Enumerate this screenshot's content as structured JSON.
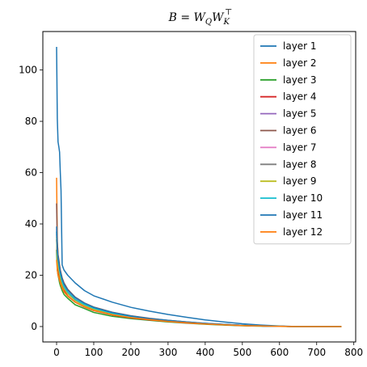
{
  "chart_data": {
    "type": "line",
    "title": "B = W_Q W_K^⊤",
    "title_parts": {
      "b": "B",
      "eq": " = W",
      "q_sub": "Q",
      "w2": "W",
      "k_sub": "K",
      "k_sup": "⊤"
    },
    "xlabel": "",
    "ylabel": "",
    "xlim": [
      -37,
      805
    ],
    "ylim": [
      -6,
      115
    ],
    "xticks": [
      0,
      100,
      200,
      300,
      400,
      500,
      600,
      700,
      800
    ],
    "yticks": [
      0,
      20,
      40,
      60,
      80,
      100
    ],
    "grid": false,
    "legend_position": "top-right",
    "series": [
      {
        "name": "layer 1",
        "color": "#1f77b4",
        "x": [
          0,
          2,
          4,
          6,
          8,
          10,
          12,
          15,
          20,
          30,
          50,
          75,
          100,
          150,
          200,
          250,
          300,
          350,
          400,
          450,
          500,
          550,
          600,
          650,
          700,
          767
        ],
        "y": [
          109,
          81,
          72,
          70,
          68,
          60,
          53,
          24,
          22,
          20,
          17,
          14,
          12,
          9.5,
          7.5,
          6,
          4.7,
          3.6,
          2.6,
          1.8,
          1.1,
          0.6,
          0.2,
          0,
          0,
          0
        ]
      },
      {
        "name": "layer 2",
        "color": "#ff7f0e",
        "x": [
          0,
          2,
          4,
          6,
          8,
          10,
          15,
          20,
          30,
          50,
          75,
          100,
          150,
          200,
          250,
          300,
          350,
          400,
          450,
          500,
          550,
          600,
          650,
          700,
          767
        ],
        "y": [
          58,
          33,
          28,
          25,
          23,
          21,
          18,
          16,
          13.5,
          10.5,
          8.5,
          7,
          5,
          3.7,
          2.9,
          2.2,
          1.6,
          1.1,
          0.7,
          0.4,
          0.2,
          0.1,
          0,
          0,
          0
        ]
      },
      {
        "name": "layer 3",
        "color": "#2ca02c",
        "x": [
          0,
          2,
          4,
          6,
          8,
          10,
          15,
          20,
          30,
          50,
          75,
          100,
          150,
          200,
          250,
          300,
          350,
          400,
          450,
          500,
          550,
          600,
          650,
          700,
          767
        ],
        "y": [
          30,
          22,
          20,
          18.5,
          17,
          16,
          14,
          12.5,
          11,
          8.5,
          7,
          5.5,
          4,
          3.1,
          2.4,
          1.8,
          1.3,
          0.9,
          0.6,
          0.3,
          0.15,
          0.05,
          0,
          0,
          0
        ]
      },
      {
        "name": "layer 4",
        "color": "#d62728",
        "x": [
          0,
          2,
          4,
          6,
          8,
          10,
          15,
          20,
          30,
          50,
          75,
          100,
          150,
          200,
          250,
          300,
          350,
          400,
          450,
          500,
          550,
          600,
          650,
          700,
          767
        ],
        "y": [
          34,
          26,
          23,
          21,
          19.5,
          18,
          15.5,
          14,
          12,
          9.5,
          7.6,
          6.2,
          4.5,
          3.4,
          2.6,
          2,
          1.4,
          1,
          0.7,
          0.4,
          0.2,
          0.1,
          0,
          0,
          0
        ]
      },
      {
        "name": "layer 5",
        "color": "#9467bd",
        "x": [
          0,
          2,
          4,
          6,
          8,
          10,
          15,
          20,
          30,
          50,
          75,
          100,
          150,
          200,
          250,
          300,
          350,
          400,
          450,
          500,
          550,
          600,
          650,
          700,
          767
        ],
        "y": [
          36,
          28,
          25,
          23,
          21,
          19.5,
          17,
          15,
          13,
          10.2,
          8.2,
          6.8,
          5,
          3.8,
          2.9,
          2.2,
          1.6,
          1.1,
          0.75,
          0.45,
          0.22,
          0.1,
          0,
          0,
          0
        ]
      },
      {
        "name": "layer 6",
        "color": "#8c564b",
        "x": [
          0,
          2,
          4,
          6,
          8,
          10,
          15,
          20,
          30,
          50,
          75,
          100,
          150,
          200,
          250,
          300,
          350,
          400,
          450,
          500,
          550,
          600,
          650,
          700,
          767
        ],
        "y": [
          48,
          33,
          28,
          26,
          24,
          22,
          19,
          17,
          14.5,
          11.5,
          9.2,
          7.6,
          5.6,
          4.2,
          3.2,
          2.4,
          1.8,
          1.25,
          0.85,
          0.5,
          0.25,
          0.1,
          0,
          0,
          0
        ]
      },
      {
        "name": "layer 7",
        "color": "#e377c2",
        "x": [
          0,
          2,
          4,
          6,
          8,
          10,
          15,
          20,
          30,
          50,
          75,
          100,
          150,
          200,
          250,
          300,
          350,
          400,
          450,
          500,
          550,
          600,
          650,
          700,
          767
        ],
        "y": [
          38,
          29,
          26,
          24,
          22,
          20.5,
          17.5,
          15.5,
          13.5,
          10.8,
          8.7,
          7.2,
          5.3,
          4,
          3,
          2.3,
          1.7,
          1.2,
          0.8,
          0.5,
          0.25,
          0.1,
          0,
          0,
          0
        ]
      },
      {
        "name": "layer 8",
        "color": "#7f7f7f",
        "x": [
          0,
          2,
          4,
          6,
          8,
          10,
          15,
          20,
          30,
          50,
          75,
          100,
          150,
          200,
          250,
          300,
          350,
          400,
          450,
          500,
          550,
          600,
          650,
          700,
          767
        ],
        "y": [
          37,
          28,
          25,
          23,
          21.5,
          20,
          17,
          15.2,
          13.2,
          10.5,
          8.5,
          7,
          5.2,
          3.9,
          3,
          2.3,
          1.7,
          1.2,
          0.8,
          0.48,
          0.24,
          0.1,
          0,
          0,
          0
        ]
      },
      {
        "name": "layer 9",
        "color": "#bcbd22",
        "x": [
          0,
          2,
          4,
          6,
          8,
          10,
          15,
          20,
          30,
          50,
          75,
          100,
          150,
          200,
          250,
          300,
          350,
          400,
          450,
          500,
          550,
          600,
          650,
          700,
          767
        ],
        "y": [
          35,
          27,
          24,
          22,
          20.5,
          19,
          16.5,
          14.8,
          12.8,
          10.2,
          8.2,
          6.8,
          5,
          3.8,
          2.9,
          2.2,
          1.6,
          1.1,
          0.75,
          0.45,
          0.22,
          0.1,
          0,
          0,
          0
        ]
      },
      {
        "name": "layer 10",
        "color": "#17becf",
        "x": [
          0,
          2,
          4,
          6,
          8,
          10,
          15,
          20,
          30,
          50,
          75,
          100,
          150,
          200,
          250,
          300,
          350,
          400,
          450,
          500,
          550,
          600,
          650,
          700,
          767
        ],
        "y": [
          37,
          29,
          26,
          24,
          22,
          20.5,
          17.5,
          15.5,
          13.4,
          10.6,
          8.6,
          7.1,
          5.2,
          3.9,
          3,
          2.3,
          1.7,
          1.2,
          0.8,
          0.48,
          0.24,
          0.1,
          0,
          0,
          0
        ]
      },
      {
        "name": "layer 11",
        "color": "#1f77b4",
        "x": [
          0,
          2,
          4,
          6,
          8,
          10,
          15,
          20,
          30,
          50,
          75,
          100,
          150,
          200,
          250,
          300,
          350,
          400,
          450,
          500,
          550,
          600,
          650,
          700,
          767
        ],
        "y": [
          39,
          30,
          27,
          25,
          23,
          21.5,
          18.5,
          16.5,
          14.2,
          11.3,
          9.1,
          7.5,
          5.5,
          4.1,
          3.1,
          2.4,
          1.8,
          1.25,
          0.85,
          0.5,
          0.25,
          0.1,
          0,
          0,
          0
        ]
      },
      {
        "name": "layer 12",
        "color": "#ff7f0e",
        "x": [
          0,
          2,
          4,
          6,
          8,
          10,
          15,
          20,
          30,
          50,
          75,
          100,
          150,
          200,
          250,
          300,
          350,
          400,
          450,
          500,
          550,
          600,
          650,
          700,
          767
        ],
        "y": [
          26,
          22,
          20,
          19,
          18,
          17,
          15,
          13.5,
          11.8,
          9.5,
          7.7,
          6.3,
          4.6,
          3.5,
          2.7,
          2,
          1.5,
          1,
          0.7,
          0.4,
          0.2,
          0.08,
          0,
          0,
          0
        ]
      }
    ]
  }
}
